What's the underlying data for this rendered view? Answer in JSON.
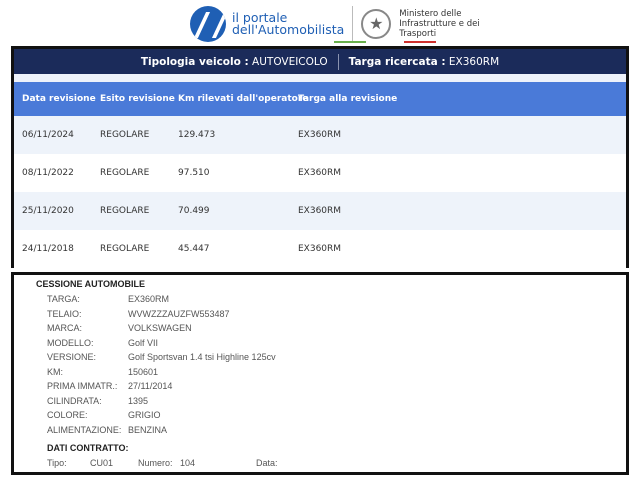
{
  "header": {
    "portal_line1": "il portale",
    "portal_line2": "dell'Automobilista",
    "ministry_line1": "Ministero delle",
    "ministry_line2": "Infrastrutture e dei",
    "ministry_line3": "Trasporti"
  },
  "search": {
    "tipologia_label": "Tipologia veicolo :",
    "tipologia_value": "AUTOVEICOLO",
    "targa_label": "Targa ricercata :",
    "targa_value": "EX360RM"
  },
  "table": {
    "columns": [
      "Data revisione",
      "Esito revisione",
      "Km rilevati dall'operatore",
      "Targa alla revisione"
    ],
    "rows": [
      [
        "06/11/2024",
        "REGOLARE",
        "129.473",
        "EX360RM"
      ],
      [
        "08/11/2022",
        "REGOLARE",
        "97.510",
        "EX360RM"
      ],
      [
        "25/11/2020",
        "REGOLARE",
        "70.499",
        "EX360RM"
      ],
      [
        "24/11/2018",
        "REGOLARE",
        "45.447",
        "EX360RM"
      ]
    ]
  },
  "document": {
    "title": "CESSIONE AUTOMOBILE",
    "fields": [
      {
        "label": "TARGA:",
        "value": "EX360RM"
      },
      {
        "label": "TELAIO:",
        "value": "WVWZZZAUZFW553487"
      },
      {
        "label": "MARCA:",
        "value": "VOLKSWAGEN"
      },
      {
        "label": "MODELLO:",
        "value": "Golf VII"
      },
      {
        "label": "VERSIONE:",
        "value": "Golf Sportsvan 1.4 tsi Highline 125cv"
      },
      {
        "label": "KM:",
        "value": "150601"
      },
      {
        "label": "PRIMA IMMATR.:",
        "value": "27/11/2014"
      },
      {
        "label": "CILINDRATA:",
        "value": "1395"
      },
      {
        "label": "COLORE:",
        "value": "GRIGIO"
      },
      {
        "label": "ALIMENTAZIONE:",
        "value": "BENZINA"
      }
    ],
    "contract_title": "DATI CONTRATTO:",
    "tipo_label": "Tipo:",
    "tipo_value": "CU01",
    "numero_label": "Numero:",
    "numero_value": "104",
    "data_label": "Data:"
  },
  "colors": {
    "navbar": "#1b2b5a",
    "table_header": "#4a7ad8",
    "brand": "#1f5fb4"
  }
}
